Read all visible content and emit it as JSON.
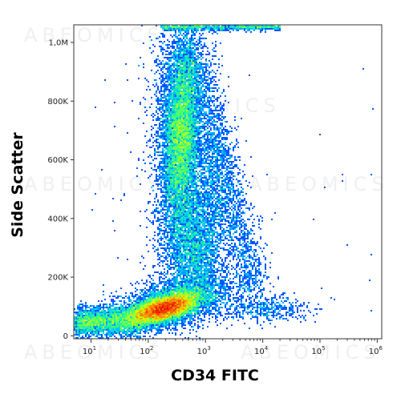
{
  "chart_data": {
    "type": "scatter",
    "style": "density dot plot (flow cytometry)",
    "xlabel": "CD34 FITC",
    "ylabel": "Side Scatter",
    "x_scale": "log",
    "xlim": [
      5,
      1200000
    ],
    "ylim": [
      -10000,
      1060000
    ],
    "x_ticks": [
      {
        "value": 10,
        "base": "10",
        "exp": "1"
      },
      {
        "value": 100,
        "base": "10",
        "exp": "2"
      },
      {
        "value": 1000,
        "base": "10",
        "exp": "3"
      },
      {
        "value": 10000,
        "base": "10",
        "exp": "4"
      },
      {
        "value": 100000,
        "base": "10",
        "exp": "5"
      },
      {
        "value": 1000000,
        "base": "10",
        "exp": "6"
      }
    ],
    "y_ticks": [
      {
        "value": 0,
        "label": "0"
      },
      {
        "value": 200000,
        "label": "200K"
      },
      {
        "value": 400000,
        "label": "400K"
      },
      {
        "value": 600000,
        "label": "600K"
      },
      {
        "value": 800000,
        "label": "800K"
      },
      {
        "value": 1000000,
        "label": "1,0M"
      }
    ],
    "populations": [
      {
        "x_center": 280,
        "y_center": 95000,
        "density": "highest (red core)"
      },
      {
        "x_center": 480,
        "y_center": 700000,
        "density": "high (green core)"
      },
      {
        "x_center": 1000,
        "y_center": 300000,
        "density": "medium (blue)"
      }
    ],
    "colormap": [
      "#0000a8",
      "#0050ff",
      "#00c8ff",
      "#30ff80",
      "#d8ff00",
      "#ff8000",
      "#e00000"
    ]
  },
  "watermark": "ABEOMICS"
}
